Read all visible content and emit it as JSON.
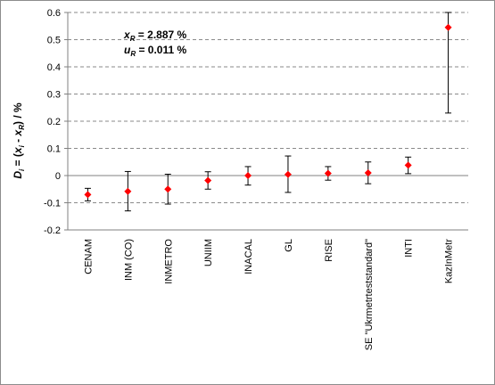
{
  "chart_data": {
    "type": "scatter",
    "ylabel": "D_i = (x_i - x_R) / %",
    "ylim": [
      -0.2,
      0.6
    ],
    "yticks": [
      "0.6",
      "0.5",
      "0.4",
      "0.3",
      "0.2",
      "0.1",
      "0",
      "-0.1",
      "-0.2"
    ],
    "ytick_values": [
      0.6,
      0.5,
      0.4,
      0.3,
      0.2,
      0.1,
      0,
      -0.1,
      -0.2
    ],
    "grid": "horizontal-dashed",
    "annotation": {
      "line1_sym": "x",
      "line1_sub": "R",
      "line1_rest": " = 2.887 %",
      "line2_sym": "u",
      "line2_sub": "R",
      "line2_rest": " = 0.011 %"
    },
    "ylabel_parts": {
      "d": "D",
      "i1": "i",
      "eq": " = (",
      "x1": "x",
      "i2": "i",
      "minus": " - ",
      "x2": "x",
      "r": "R",
      "close": ") / %"
    },
    "marker_color": "#ff0000",
    "categories": [
      "CENAM",
      "INM (CO)",
      "INMETRO",
      "UNIIM",
      "INACAL",
      "GL",
      "RISE",
      "SE \"Ukrmetrteststandard\"",
      "INTI",
      "KazInMetr"
    ],
    "values": [
      -0.07,
      -0.058,
      -0.05,
      -0.018,
      0.0,
      0.004,
      0.008,
      0.01,
      0.038,
      0.545
    ],
    "error_low": [
      -0.093,
      -0.13,
      -0.105,
      -0.05,
      -0.035,
      -0.062,
      -0.017,
      -0.03,
      0.007,
      0.23
    ],
    "error_high": [
      -0.047,
      0.015,
      0.005,
      0.014,
      0.033,
      0.072,
      0.033,
      0.05,
      0.068,
      0.6
    ]
  }
}
